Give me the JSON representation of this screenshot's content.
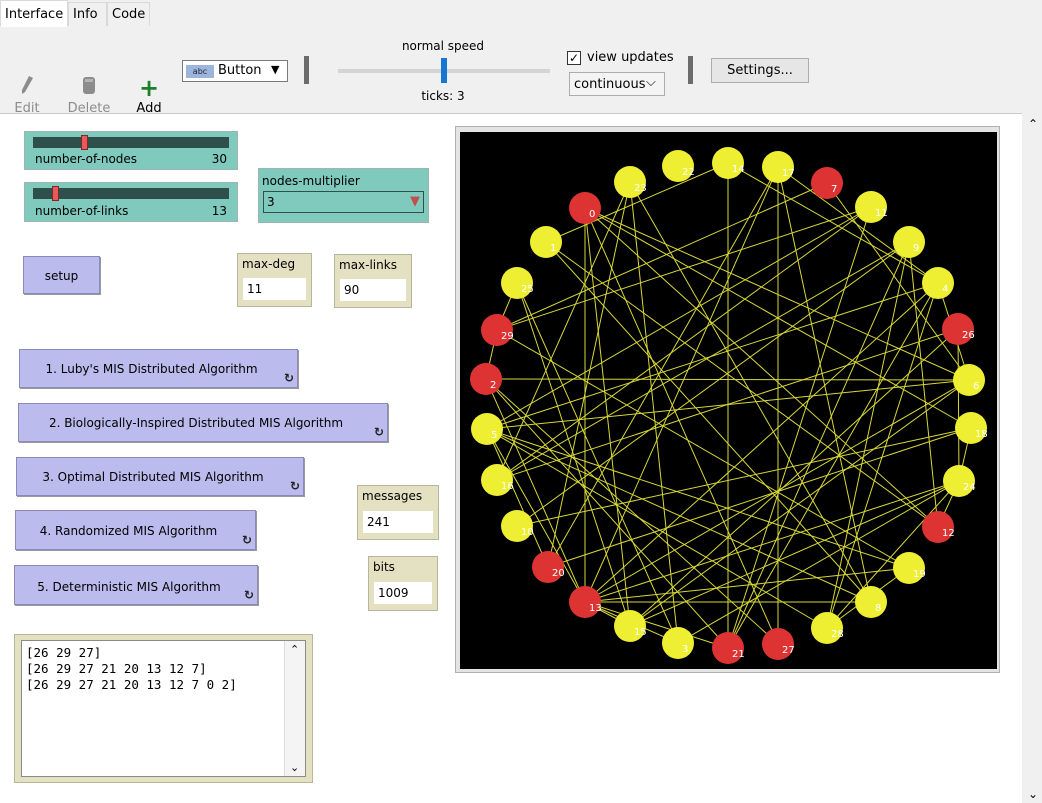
{
  "tabs": [
    {
      "label": "Interface",
      "active": true
    },
    {
      "label": "Info",
      "active": false
    },
    {
      "label": "Code",
      "active": false
    }
  ],
  "toolbar": {
    "edit_label": "Edit",
    "delete_label": "Delete",
    "add_label": "Add",
    "widget_type": "Button",
    "speed_label": "normal speed",
    "speed_level": 0.5,
    "ticks_label": "ticks: 3",
    "view_updates_label": "view updates",
    "view_updates_checked": true,
    "update_mode": "continuous",
    "settings_label": "Settings..."
  },
  "sliders": [
    {
      "label": "number-of-nodes",
      "value": "30",
      "level": 0.25
    },
    {
      "label": "number-of-links",
      "value": "13",
      "level": 0.1
    }
  ],
  "chooser": {
    "label": "nodes-multiplier",
    "value": "3"
  },
  "setup_label": "setup",
  "monitors": {
    "max_deg": {
      "label": "max-deg",
      "value": "11"
    },
    "max_links": {
      "label": "max-links",
      "value": "90"
    },
    "messages": {
      "label": "messages",
      "value": "241"
    },
    "bits": {
      "label": "bits",
      "value": "1009"
    }
  },
  "buttons": [
    "1. Luby's MIS Distributed Algorithm",
    "2. Biologically-Inspired Distributed MIS Algorithm",
    "3. Optimal Distributed MIS Algorithm",
    "4. Randomized MIS Algorithm",
    "5. Deterministic MIS Algorithm"
  ],
  "output_lines": [
    "[26 29 27]",
    "[26 29 27 21 20 13 12 7]",
    "[26 29 27 21 20 13 12 7 0 2]"
  ],
  "network": {
    "red_nodes": [
      "0",
      "7",
      "26",
      "29",
      "2",
      "12",
      "20",
      "13",
      "21",
      "27"
    ],
    "yellow_nodes": [
      "14",
      "22",
      "23",
      "17",
      "11",
      "1",
      "9",
      "4",
      "25",
      "6",
      "18",
      "5",
      "24",
      "16",
      "19",
      "10",
      "15",
      "3",
      "28",
      "8"
    ],
    "colors": {
      "red": "#dd3333",
      "yellow": "#eeee33",
      "link": "#d8d83a",
      "background": "#000000"
    }
  }
}
